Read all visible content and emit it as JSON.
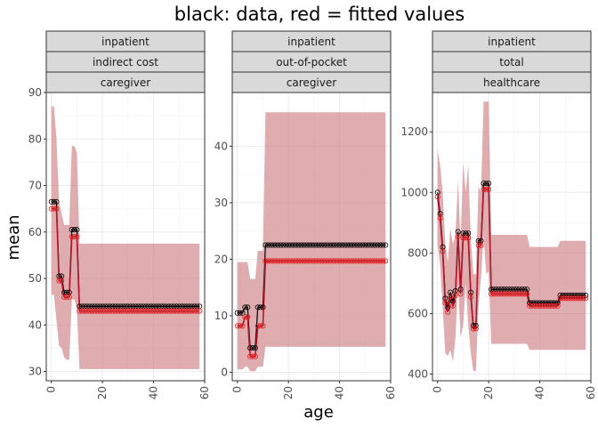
{
  "chart_data": {
    "type": "line",
    "title": "black: data, red = fitted values",
    "xlabel": "age",
    "ylabel": "mean",
    "colors": {
      "data": "#000000",
      "fitted": "#e41a1c",
      "fit_line": "#b2182b",
      "ribbon": "#c9777a"
    },
    "panels": [
      {
        "strips": [
          "inpatient",
          "indirect cost",
          "caregiver"
        ],
        "xlim": [
          -2,
          60
        ],
        "ylim": [
          28,
          90
        ],
        "x_ticks": [
          0,
          20,
          40,
          60
        ],
        "y_ticks": [
          30,
          40,
          50,
          60,
          70,
          80,
          90
        ],
        "data_series": [
          [
            0,
            66.5
          ],
          [
            1,
            66.5
          ],
          [
            2,
            66.5
          ],
          [
            3,
            50.5
          ],
          [
            4,
            50.5
          ],
          [
            5,
            47
          ],
          [
            6,
            47
          ],
          [
            7,
            47
          ],
          [
            8,
            60.5
          ],
          [
            9,
            60.5
          ],
          [
            10,
            60.5
          ],
          [
            11,
            44
          ],
          [
            12,
            44
          ],
          [
            58,
            44
          ]
        ],
        "fitted_series": [
          [
            0,
            65
          ],
          [
            1,
            65
          ],
          [
            2,
            65
          ],
          [
            3,
            49.5
          ],
          [
            4,
            49.5
          ],
          [
            5,
            46
          ],
          [
            6,
            46
          ],
          [
            7,
            46
          ],
          [
            8,
            59
          ],
          [
            9,
            59
          ],
          [
            10,
            59
          ],
          [
            11,
            43
          ],
          [
            12,
            43
          ],
          [
            58,
            43
          ]
        ],
        "ribbon_lower": [
          [
            0,
            46.5
          ],
          [
            1,
            46.5
          ],
          [
            2,
            41
          ],
          [
            3,
            35.5
          ],
          [
            4,
            35
          ],
          [
            5,
            33
          ],
          [
            6,
            32.5
          ],
          [
            7,
            32.5
          ],
          [
            8,
            45.5
          ],
          [
            9,
            45.5
          ],
          [
            10,
            43.5
          ],
          [
            11,
            30.5
          ],
          [
            12,
            30.5
          ],
          [
            58,
            30.5
          ]
        ],
        "ribbon_upper": [
          [
            0,
            87
          ],
          [
            1,
            87
          ],
          [
            2,
            80
          ],
          [
            3,
            66.5
          ],
          [
            4,
            64
          ],
          [
            5,
            61.5
          ],
          [
            6,
            61.5
          ],
          [
            7,
            61.5
          ],
          [
            8,
            78.5
          ],
          [
            9,
            78.5
          ],
          [
            10,
            77
          ],
          [
            11,
            57.5
          ],
          [
            12,
            57.5
          ],
          [
            58,
            57.5
          ]
        ]
      },
      {
        "strips": [
          "inpatient",
          "out-of-pocket",
          "caregiver"
        ],
        "xlim": [
          -2,
          60
        ],
        "ylim": [
          -1.5,
          49.5
        ],
        "x_ticks": [
          0,
          20,
          40,
          60
        ],
        "y_ticks": [
          0,
          10,
          20,
          30,
          40
        ],
        "data_series": [
          [
            0,
            10.5
          ],
          [
            2,
            10.5
          ],
          [
            3,
            11.5
          ],
          [
            4,
            11.5
          ],
          [
            5,
            4.3
          ],
          [
            6,
            4.3
          ],
          [
            7,
            4.3
          ],
          [
            8,
            11.5
          ],
          [
            10,
            11.5
          ],
          [
            11,
            22.5
          ],
          [
            12,
            22.5
          ],
          [
            58,
            22.5
          ]
        ],
        "fitted_series": [
          [
            0,
            8.2
          ],
          [
            2,
            8.2
          ],
          [
            3,
            9.8
          ],
          [
            4,
            9.8
          ],
          [
            5,
            2.8
          ],
          [
            6,
            2.8
          ],
          [
            7,
            2.8
          ],
          [
            8,
            8.2
          ],
          [
            10,
            8.2
          ],
          [
            11,
            19.7
          ],
          [
            12,
            19.7
          ],
          [
            58,
            19.7
          ]
        ],
        "ribbon_lower": [
          [
            0,
            0.5
          ],
          [
            2,
            0.5
          ],
          [
            3,
            1
          ],
          [
            4,
            1
          ],
          [
            5,
            0.2
          ],
          [
            6,
            0.2
          ],
          [
            7,
            0.2
          ],
          [
            8,
            1
          ],
          [
            10,
            1
          ],
          [
            11,
            4.5
          ],
          [
            12,
            4.5
          ],
          [
            58,
            4.5
          ]
        ],
        "ribbon_upper": [
          [
            0,
            19.5
          ],
          [
            2,
            19.5
          ],
          [
            3,
            19.5
          ],
          [
            4,
            19.5
          ],
          [
            5,
            16.5
          ],
          [
            6,
            16.5
          ],
          [
            7,
            16.5
          ],
          [
            8,
            21.5
          ],
          [
            10,
            21.5
          ],
          [
            11,
            46
          ],
          [
            12,
            46
          ],
          [
            58,
            46
          ]
        ]
      },
      {
        "strips": [
          "inpatient",
          "total",
          "healthcare"
        ],
        "xlim": [
          -2,
          60
        ],
        "ylim": [
          378,
          1330
        ],
        "x_ticks": [
          0,
          20,
          40,
          60
        ],
        "y_ticks": [
          400,
          600,
          800,
          1000,
          1200
        ],
        "data_series": [
          [
            0,
            1000
          ],
          [
            1,
            930
          ],
          [
            2,
            820
          ],
          [
            3,
            650
          ],
          [
            4,
            620
          ],
          [
            5,
            670
          ],
          [
            6,
            640
          ],
          [
            7,
            675
          ],
          [
            8,
            870
          ],
          [
            9,
            680
          ],
          [
            10,
            865
          ],
          [
            11,
            865
          ],
          [
            12,
            865
          ],
          [
            13,
            670
          ],
          [
            14,
            560
          ],
          [
            15,
            560
          ],
          [
            16,
            840
          ],
          [
            17,
            840
          ],
          [
            18,
            1030
          ],
          [
            19,
            1030
          ],
          [
            20,
            1030
          ],
          [
            21,
            680
          ],
          [
            35,
            680
          ],
          [
            36,
            635
          ],
          [
            47,
            635
          ],
          [
            48,
            660
          ],
          [
            58,
            660
          ]
        ],
        "fitted_series": [
          [
            0,
            985
          ],
          [
            1,
            915
          ],
          [
            2,
            805
          ],
          [
            3,
            635
          ],
          [
            4,
            605
          ],
          [
            5,
            655
          ],
          [
            6,
            625
          ],
          [
            7,
            660
          ],
          [
            8,
            855
          ],
          [
            9,
            665
          ],
          [
            10,
            850
          ],
          [
            11,
            850
          ],
          [
            12,
            850
          ],
          [
            13,
            655
          ],
          [
            14,
            550
          ],
          [
            15,
            550
          ],
          [
            16,
            825
          ],
          [
            17,
            825
          ],
          [
            18,
            1010
          ],
          [
            19,
            1010
          ],
          [
            20,
            1010
          ],
          [
            21,
            665
          ],
          [
            35,
            665
          ],
          [
            36,
            625
          ],
          [
            47,
            625
          ],
          [
            48,
            650
          ],
          [
            58,
            650
          ]
        ],
        "ribbon_lower": [
          [
            0,
            830
          ],
          [
            1,
            760
          ],
          [
            2,
            620
          ],
          [
            3,
            470
          ],
          [
            4,
            460
          ],
          [
            5,
            480
          ],
          [
            6,
            440
          ],
          [
            7,
            520
          ],
          [
            8,
            700
          ],
          [
            9,
            520
          ],
          [
            10,
            560
          ],
          [
            11,
            700
          ],
          [
            12,
            560
          ],
          [
            13,
            470
          ],
          [
            14,
            410
          ],
          [
            15,
            410
          ],
          [
            16,
            620
          ],
          [
            17,
            720
          ],
          [
            18,
            860
          ],
          [
            19,
            730
          ],
          [
            20,
            740
          ],
          [
            21,
            500
          ],
          [
            35,
            500
          ],
          [
            36,
            480
          ],
          [
            47,
            480
          ],
          [
            48,
            480
          ],
          [
            58,
            480
          ]
        ],
        "ribbon_upper": [
          [
            0,
            1140
          ],
          [
            1,
            1090
          ],
          [
            2,
            1000
          ],
          [
            3,
            830
          ],
          [
            4,
            770
          ],
          [
            5,
            880
          ],
          [
            6,
            830
          ],
          [
            7,
            860
          ],
          [
            8,
            1040
          ],
          [
            9,
            830
          ],
          [
            10,
            1100
          ],
          [
            11,
            1000
          ],
          [
            12,
            1090
          ],
          [
            13,
            850
          ],
          [
            14,
            730
          ],
          [
            15,
            730
          ],
          [
            16,
            1020
          ],
          [
            17,
            1000
          ],
          [
            18,
            1300
          ],
          [
            19,
            1300
          ],
          [
            20,
            1300
          ],
          [
            21,
            860
          ],
          [
            35,
            860
          ],
          [
            36,
            820
          ],
          [
            47,
            820
          ],
          [
            48,
            840
          ],
          [
            58,
            840
          ]
        ]
      }
    ]
  }
}
